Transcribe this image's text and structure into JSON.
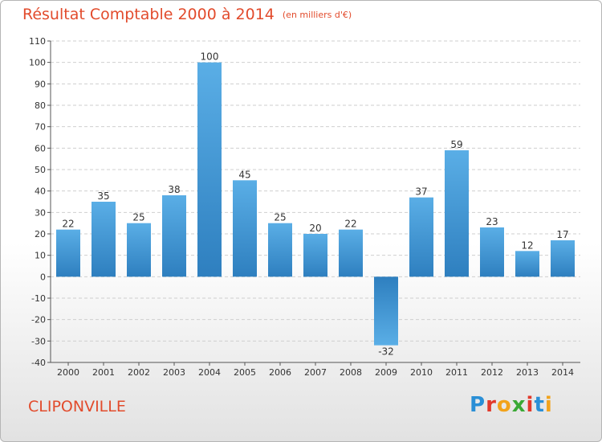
{
  "header": {
    "title": "Résultat Comptable 2000 à 2014",
    "subtitle": "(en milliers d'€)"
  },
  "footer": {
    "city": "CLIPONVILLE",
    "logo_letters": [
      "P",
      "r",
      "o",
      "x",
      "i",
      "t",
      "i"
    ],
    "logo_colors": [
      "#2a8fd6",
      "#e2392b",
      "#f2a31b",
      "#3aa935",
      "#e2392b",
      "#2a8fd6",
      "#f2a31b"
    ]
  },
  "chart_data": {
    "type": "bar",
    "title": "Résultat Comptable 2000 à 2014",
    "subtitle": "(en milliers d'€)",
    "categories": [
      "2000",
      "2001",
      "2002",
      "2003",
      "2004",
      "2005",
      "2006",
      "2007",
      "2008",
      "2009",
      "2010",
      "2011",
      "2012",
      "2013",
      "2014"
    ],
    "values": [
      22,
      35,
      25,
      38,
      100,
      45,
      25,
      20,
      22,
      -32,
      37,
      59,
      23,
      12,
      17
    ],
    "ylim": [
      -40,
      110
    ],
    "yticks": [
      -40,
      -30,
      -20,
      -10,
      0,
      10,
      20,
      30,
      40,
      50,
      60,
      70,
      80,
      90,
      100,
      110
    ],
    "grid": true,
    "bar_color_light": "#5aaee6",
    "bar_color_dark": "#2e7fbf"
  }
}
